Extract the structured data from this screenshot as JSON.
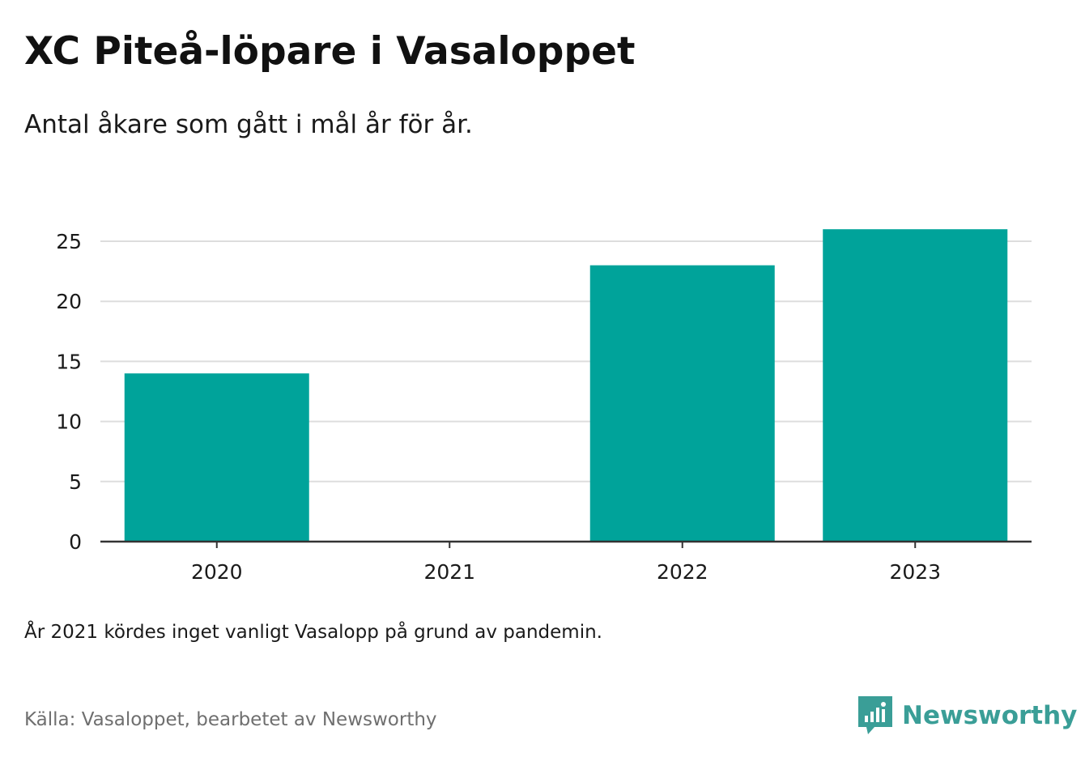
{
  "title": "XC Piteå-löpare i Vasaloppet",
  "subtitle": "Antal åkare som gått i mål år för år.",
  "note": "År 2021 kördes inget vanligt Vasalopp på grund av pandemin.",
  "source": "Källa: Vasaloppet, bearbetet av Newsworthy",
  "brand": {
    "name": "Newsworthy",
    "icon": "newsworthy-logo-icon",
    "color": "#3a9e97"
  },
  "colors": {
    "bar": "#00a39a",
    "grid": "#dddddd",
    "axis": "#333333",
    "text": "#1a1a1a"
  },
  "chart_data": {
    "type": "bar",
    "categories": [
      "2020",
      "2021",
      "2022",
      "2023"
    ],
    "values": [
      14,
      0,
      23,
      26
    ],
    "yticks": [
      0,
      5,
      10,
      15,
      20,
      25
    ],
    "ylim": [
      0,
      26
    ],
    "grid": true,
    "legend": "none"
  }
}
